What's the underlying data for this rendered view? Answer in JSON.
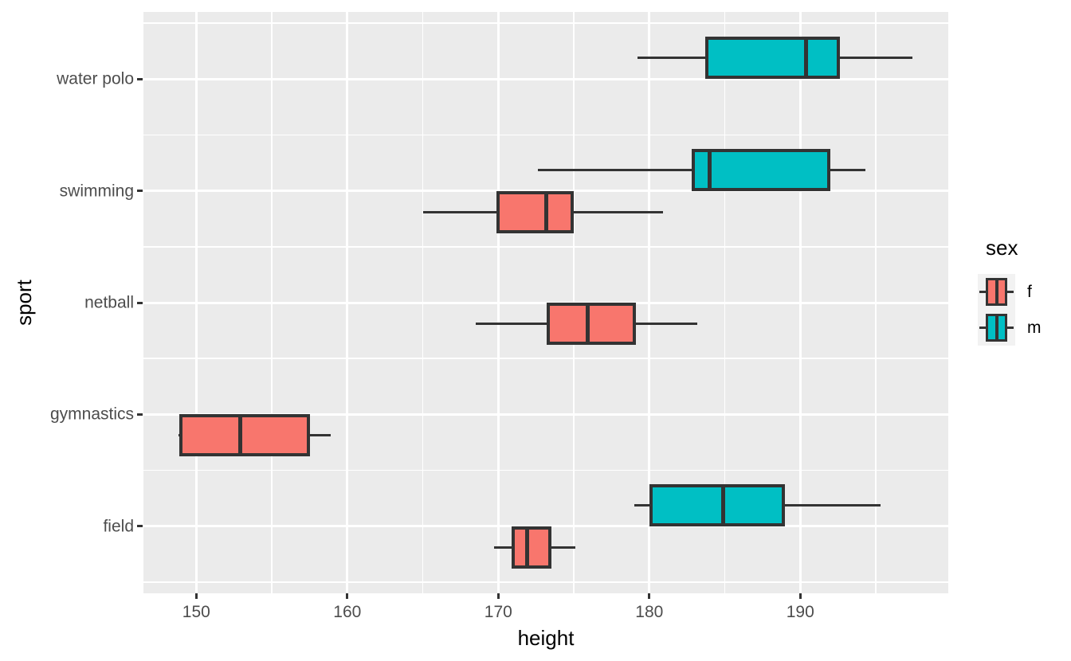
{
  "chart_data": {
    "type": "boxplot",
    "orientation": "horizontal",
    "title": "",
    "xlabel": "height",
    "ylabel": "sport",
    "xlim": [
      146.5,
      199.8
    ],
    "x_ticks": [
      150,
      160,
      170,
      180,
      190
    ],
    "x_minor_ticks": [
      155,
      165,
      175,
      185,
      195
    ],
    "categories": [
      "water polo",
      "swimming",
      "netball",
      "gymnastics",
      "field"
    ],
    "grid": true,
    "panel_bg": "#EBEBEB",
    "grid_color": "#FFFFFF",
    "box_border_color": "#333333",
    "axis_text_color": "#4D4D4D",
    "series": [
      {
        "sport": "water polo",
        "sex": "m",
        "min": 179.2,
        "q1": 183.8,
        "median": 190.4,
        "q3": 192.5,
        "max": 197.4
      },
      {
        "sport": "swimming",
        "sex": "m",
        "min": 172.6,
        "q1": 182.9,
        "median": 184.0,
        "q3": 191.9,
        "max": 194.3
      },
      {
        "sport": "swimming",
        "sex": "f",
        "min": 165.0,
        "q1": 170.0,
        "median": 173.2,
        "q3": 174.9,
        "max": 180.9
      },
      {
        "sport": "netball",
        "sex": "f",
        "min": 168.5,
        "q1": 173.3,
        "median": 175.9,
        "q3": 179.0,
        "max": 183.2
      },
      {
        "sport": "gymnastics",
        "sex": "f",
        "min": 148.8,
        "q1": 149.0,
        "median": 152.9,
        "q3": 157.4,
        "max": 158.9
      },
      {
        "sport": "field",
        "sex": "m",
        "min": 179.0,
        "q1": 180.1,
        "median": 184.9,
        "q3": 188.9,
        "max": 195.3
      },
      {
        "sport": "field",
        "sex": "f",
        "min": 169.7,
        "q1": 171.0,
        "median": 171.9,
        "q3": 173.4,
        "max": 175.1
      }
    ],
    "legend": {
      "title": "sex",
      "position": "right",
      "items": [
        {
          "label": "f",
          "color": "#F8766D"
        },
        {
          "label": "m",
          "color": "#00BFC4"
        }
      ]
    }
  }
}
